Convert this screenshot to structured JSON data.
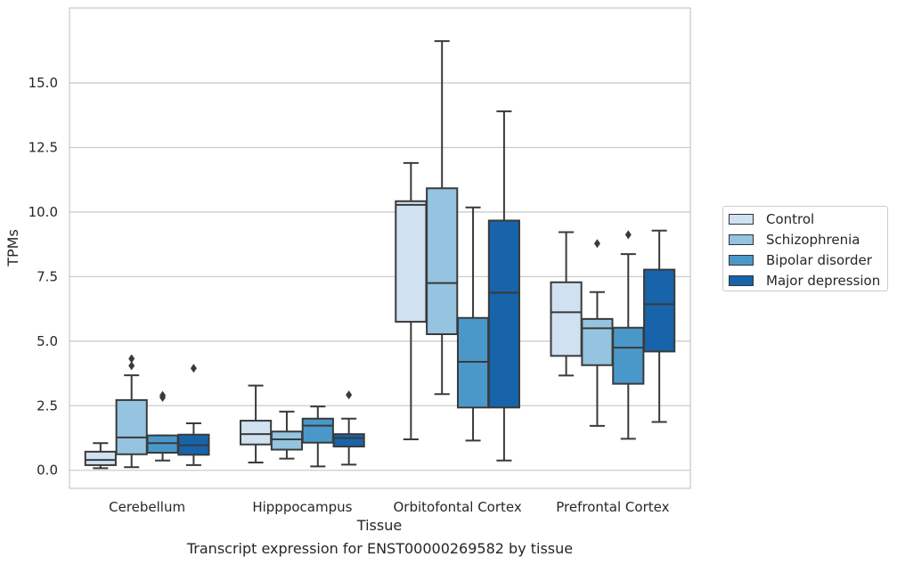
{
  "caption": "Transcript expression for ENST00000269582 by tissue",
  "chart_data": {
    "type": "box",
    "xlabel": "Tissue",
    "ylabel": "TPMs",
    "ylim": [
      -0.7,
      17.9
    ],
    "yticks": [
      0.0,
      2.5,
      5.0,
      7.5,
      10.0,
      12.5,
      15.0
    ],
    "ytick_labels": [
      "0.0",
      "2.5",
      "5.0",
      "7.5",
      "10.0",
      "12.5",
      "15.0"
    ],
    "grid": "horizontal",
    "legend_position": "right",
    "categories": [
      "Cerebellum",
      "Hipppocampus",
      "Orbitofontal Cortex",
      "Prefrontal Cortex"
    ],
    "series": [
      {
        "name": "Control",
        "color": "#d0e1f2",
        "boxes": [
          {
            "whislo": 0.08,
            "q1": 0.2,
            "med": 0.4,
            "q3": 0.72,
            "whishi": 1.05,
            "fliers": []
          },
          {
            "whislo": 0.3,
            "q1": 1.0,
            "med": 1.4,
            "q3": 1.92,
            "whishi": 3.28,
            "fliers": []
          },
          {
            "whislo": 1.2,
            "q1": 5.75,
            "med": 10.28,
            "q3": 10.42,
            "whishi": 11.9,
            "fliers": []
          },
          {
            "whislo": 3.67,
            "q1": 4.43,
            "med": 6.12,
            "q3": 7.28,
            "whishi": 9.22,
            "fliers": []
          }
        ]
      },
      {
        "name": "Schizophrenia",
        "color": "#94c4df",
        "boxes": [
          {
            "whislo": 0.12,
            "q1": 0.62,
            "med": 1.27,
            "q3": 2.72,
            "whishi": 3.68,
            "fliers": [
              4.05,
              4.32
            ]
          },
          {
            "whislo": 0.45,
            "q1": 0.8,
            "med": 1.2,
            "q3": 1.5,
            "whishi": 2.27,
            "fliers": []
          },
          {
            "whislo": 2.95,
            "q1": 5.27,
            "med": 7.25,
            "q3": 10.92,
            "whishi": 16.62,
            "fliers": []
          },
          {
            "whislo": 1.72,
            "q1": 4.07,
            "med": 5.5,
            "q3": 5.86,
            "whishi": 6.9,
            "fliers": [
              8.78
            ]
          }
        ]
      },
      {
        "name": "Bipolar disorder",
        "color": "#4a98c9",
        "boxes": [
          {
            "whislo": 0.38,
            "q1": 0.68,
            "med": 1.05,
            "q3": 1.35,
            "whishi": 1.35,
            "fliers": [
              2.82,
              2.9
            ]
          },
          {
            "whislo": 0.15,
            "q1": 1.07,
            "med": 1.73,
            "q3": 2.0,
            "whishi": 2.47,
            "fliers": []
          },
          {
            "whislo": 1.15,
            "q1": 2.43,
            "med": 4.2,
            "q3": 5.9,
            "whishi": 10.18,
            "fliers": []
          },
          {
            "whislo": 1.22,
            "q1": 3.35,
            "med": 4.75,
            "q3": 5.52,
            "whishi": 8.37,
            "fliers": [
              9.12
            ]
          }
        ]
      },
      {
        "name": "Major depression",
        "color": "#1764ab",
        "boxes": [
          {
            "whislo": 0.2,
            "q1": 0.6,
            "med": 0.97,
            "q3": 1.38,
            "whishi": 1.82,
            "fliers": [
              3.95
            ]
          },
          {
            "whislo": 0.22,
            "q1": 0.92,
            "med": 1.25,
            "q3": 1.4,
            "whishi": 2.0,
            "fliers": [
              2.92
            ]
          },
          {
            "whislo": 0.38,
            "q1": 2.43,
            "med": 6.88,
            "q3": 9.67,
            "whishi": 13.9,
            "fliers": []
          },
          {
            "whislo": 1.87,
            "q1": 4.6,
            "med": 6.43,
            "q3": 7.77,
            "whishi": 9.28,
            "fliers": []
          }
        ]
      }
    ]
  }
}
